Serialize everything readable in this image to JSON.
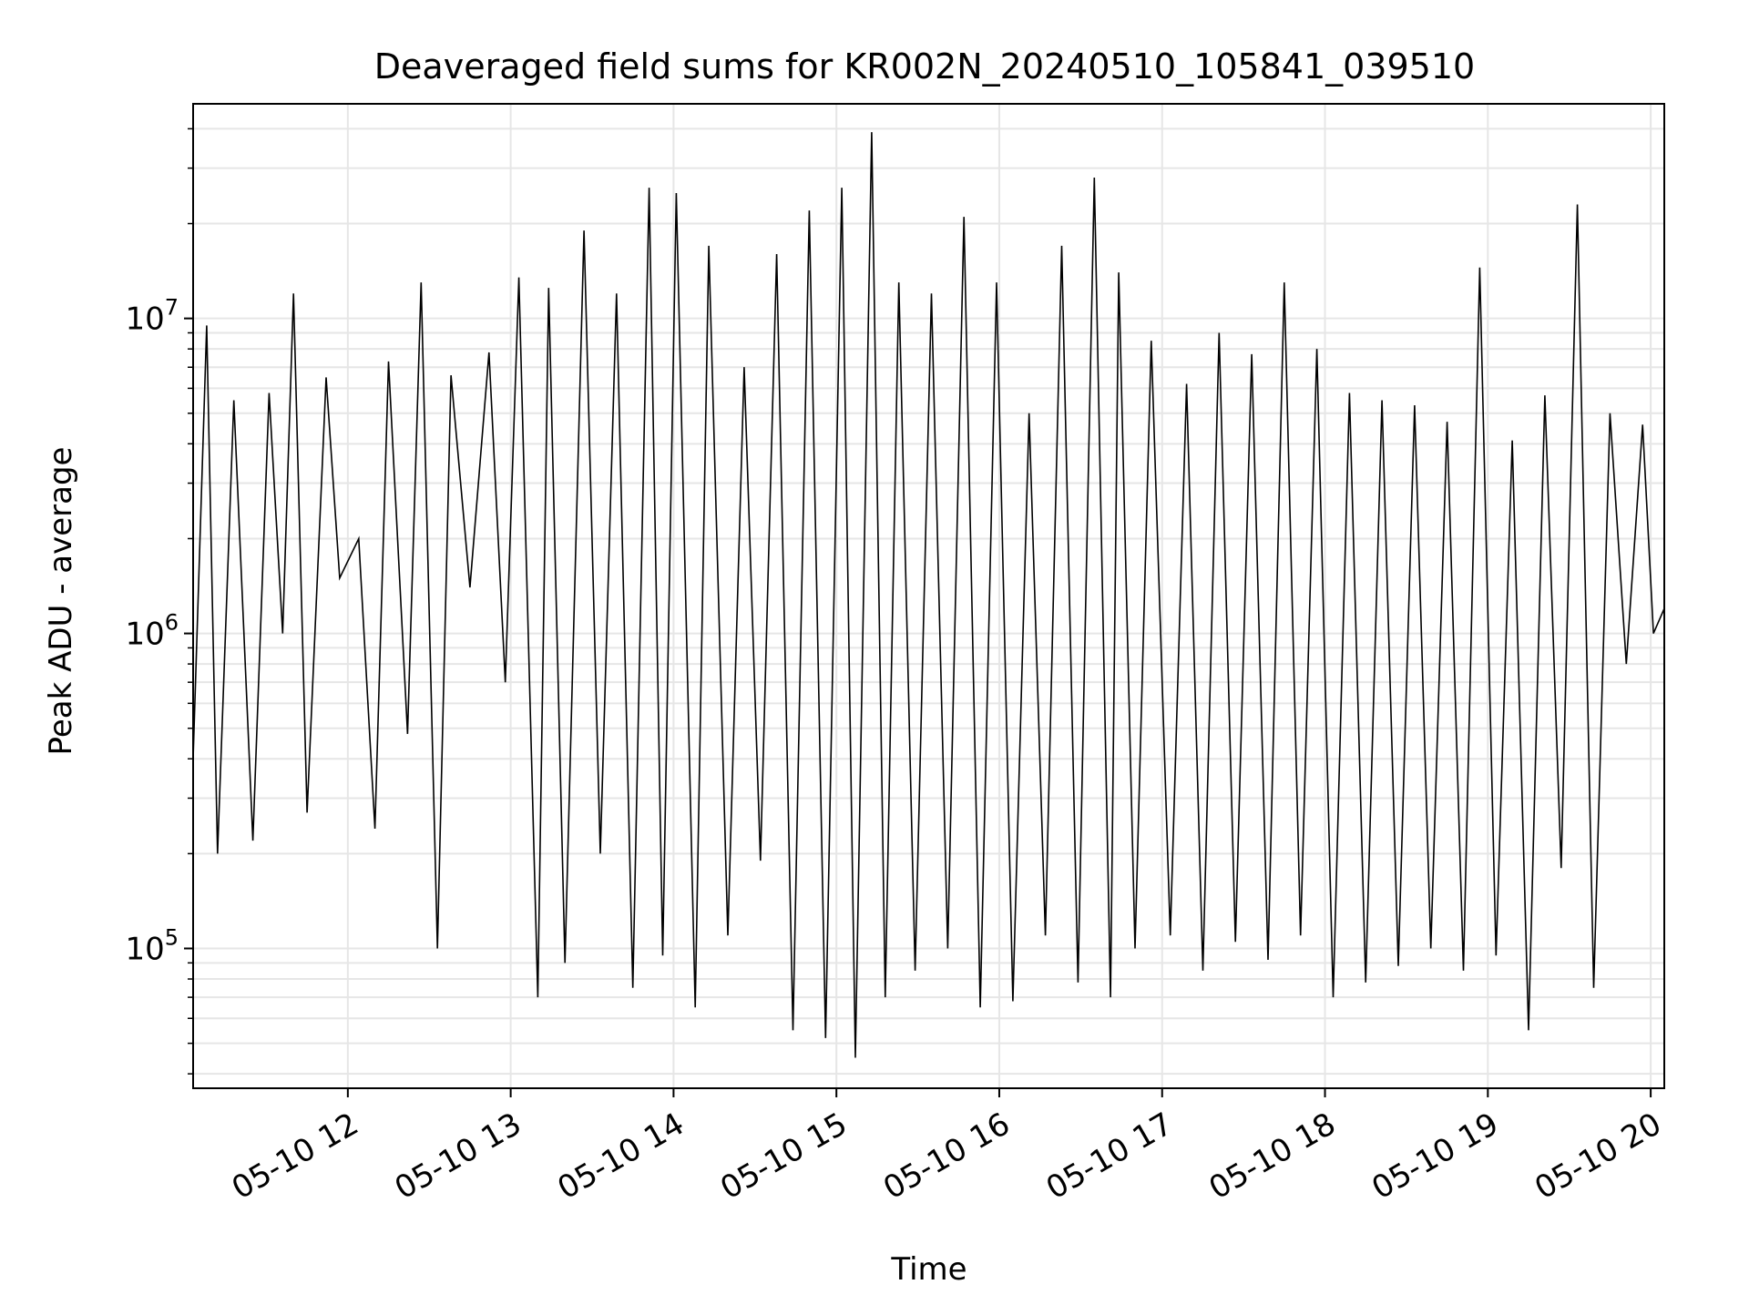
{
  "chart_data": {
    "type": "line",
    "title": "Deaveraged field sums for KR002N_20240510_105841_039510",
    "xlabel": "Time",
    "ylabel": "Peak ADU - average",
    "x_range": [
      "2024-05-10 11:03",
      "2024-05-10 20:05"
    ],
    "y_scale": "log",
    "ylim": [
      36000,
      48000000
    ],
    "x_ticks": [
      {
        "value": "2024-05-10 12:00",
        "label": "05-10 12"
      },
      {
        "value": "2024-05-10 13:00",
        "label": "05-10 13"
      },
      {
        "value": "2024-05-10 14:00",
        "label": "05-10 14"
      },
      {
        "value": "2024-05-10 15:00",
        "label": "05-10 15"
      },
      {
        "value": "2024-05-10 16:00",
        "label": "05-10 16"
      },
      {
        "value": "2024-05-10 17:00",
        "label": "05-10 17"
      },
      {
        "value": "2024-05-10 18:00",
        "label": "05-10 18"
      },
      {
        "value": "2024-05-10 19:00",
        "label": "05-10 19"
      },
      {
        "value": "2024-05-10 20:00",
        "label": "05-10 20"
      }
    ],
    "y_ticks": [
      {
        "value": 100000,
        "base": "10",
        "exp": "5"
      },
      {
        "value": 1000000,
        "base": "10",
        "exp": "6"
      },
      {
        "value": 10000000,
        "base": "10",
        "exp": "7"
      }
    ],
    "grid": true,
    "line_color": "#000000",
    "series": [
      {
        "x": [
          "2024-05-10 11:03",
          "2024-05-10 11:08",
          "2024-05-10 11:12",
          "2024-05-10 11:18",
          "2024-05-10 11:25",
          "2024-05-10 11:31",
          "2024-05-10 11:36",
          "2024-05-10 11:40",
          "2024-05-10 11:45",
          "2024-05-10 11:52",
          "2024-05-10 11:57",
          "2024-05-10 12:04",
          "2024-05-10 12:10",
          "2024-05-10 12:15",
          "2024-05-10 12:22",
          "2024-05-10 12:27",
          "2024-05-10 12:33",
          "2024-05-10 12:38",
          "2024-05-10 12:45",
          "2024-05-10 12:52",
          "2024-05-10 12:58",
          "2024-05-10 13:03",
          "2024-05-10 13:10",
          "2024-05-10 13:14",
          "2024-05-10 13:20",
          "2024-05-10 13:27",
          "2024-05-10 13:33",
          "2024-05-10 13:39",
          "2024-05-10 13:45",
          "2024-05-10 13:51",
          "2024-05-10 13:56",
          "2024-05-10 14:01",
          "2024-05-10 14:08",
          "2024-05-10 14:13",
          "2024-05-10 14:20",
          "2024-05-10 14:26",
          "2024-05-10 14:32",
          "2024-05-10 14:38",
          "2024-05-10 14:44",
          "2024-05-10 14:50",
          "2024-05-10 14:56",
          "2024-05-10 15:02",
          "2024-05-10 15:07",
          "2024-05-10 15:13",
          "2024-05-10 15:18",
          "2024-05-10 15:23",
          "2024-05-10 15:29",
          "2024-05-10 15:35",
          "2024-05-10 15:41",
          "2024-05-10 15:47",
          "2024-05-10 15:53",
          "2024-05-10 15:59",
          "2024-05-10 16:05",
          "2024-05-10 16:11",
          "2024-05-10 16:17",
          "2024-05-10 16:23",
          "2024-05-10 16:29",
          "2024-05-10 16:35",
          "2024-05-10 16:41",
          "2024-05-10 16:44",
          "2024-05-10 16:50",
          "2024-05-10 16:56",
          "2024-05-10 17:03",
          "2024-05-10 17:09",
          "2024-05-10 17:15",
          "2024-05-10 17:21",
          "2024-05-10 17:27",
          "2024-05-10 17:33",
          "2024-05-10 17:39",
          "2024-05-10 17:45",
          "2024-05-10 17:51",
          "2024-05-10 17:57",
          "2024-05-10 18:03",
          "2024-05-10 18:09",
          "2024-05-10 18:15",
          "2024-05-10 18:21",
          "2024-05-10 18:27",
          "2024-05-10 18:33",
          "2024-05-10 18:39",
          "2024-05-10 18:45",
          "2024-05-10 18:51",
          "2024-05-10 18:57",
          "2024-05-10 19:03",
          "2024-05-10 19:09",
          "2024-05-10 19:15",
          "2024-05-10 19:21",
          "2024-05-10 19:27",
          "2024-05-10 19:33",
          "2024-05-10 19:39",
          "2024-05-10 19:45",
          "2024-05-10 19:51",
          "2024-05-10 19:57",
          "2024-05-10 20:01",
          "2024-05-10 20:05"
        ],
        "values": [
          400000,
          9500000,
          200000,
          5500000,
          220000,
          5800000,
          1000000,
          12000000,
          270000,
          6500000,
          1500000,
          2000000,
          240000,
          7300000,
          480000,
          13000000,
          100000,
          6600000,
          1400000,
          7800000,
          700000,
          13500000,
          70000,
          12500000,
          90000,
          19000000,
          200000,
          12000000,
          75000,
          26000000,
          95000,
          25000000,
          65000,
          17000000,
          110000,
          7000000,
          190000,
          16000000,
          55000,
          22000000,
          52000,
          26000000,
          45000,
          39000000,
          70000,
          13000000,
          85000,
          12000000,
          100000,
          21000000,
          65000,
          13000000,
          68000,
          5000000,
          110000,
          17000000,
          78000,
          28000000,
          70000,
          14000000,
          100000,
          8500000,
          110000,
          6200000,
          85000,
          9000000,
          105000,
          7700000,
          92000,
          13000000,
          110000,
          8000000,
          70000,
          5800000,
          78000,
          5500000,
          88000,
          5300000,
          100000,
          4700000,
          85000,
          14500000,
          95000,
          4100000,
          55000,
          5700000,
          180000,
          23000000,
          75000,
          5000000,
          800000,
          4600000,
          1000000,
          1200000
        ]
      }
    ]
  }
}
